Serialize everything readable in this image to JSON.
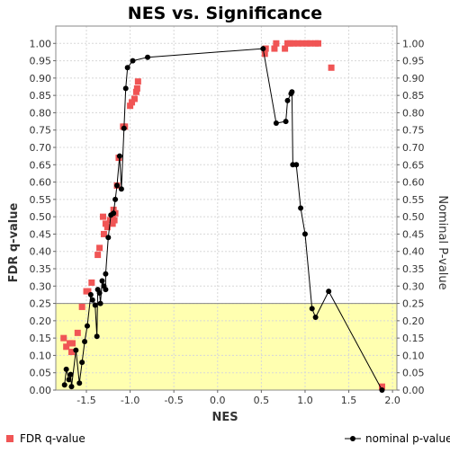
{
  "chart_data": {
    "type": "scatter",
    "title": "NES vs. Significance",
    "xlabel": "NES",
    "ylabel_left": "FDR q-value",
    "ylabel_right": "Nominal P-value",
    "xlim": [
      -1.85,
      2.05
    ],
    "ylim": [
      0,
      1.05
    ],
    "x_ticks": [
      "-1.5",
      "-1.0",
      "-0.5",
      "0.0",
      "0.5",
      "1.0",
      "1.5",
      "2.0"
    ],
    "y_ticks": [
      "0.00",
      "0.05",
      "0.10",
      "0.15",
      "0.20",
      "0.25",
      "0.30",
      "0.35",
      "0.40",
      "0.45",
      "0.50",
      "0.55",
      "0.60",
      "0.65",
      "0.70",
      "0.75",
      "0.80",
      "0.85",
      "0.90",
      "0.95",
      "1.00"
    ],
    "grid": true,
    "highlight_band": {
      "y_from": 0,
      "y_to": 0.25,
      "color": "#ffffb0"
    },
    "colors": {
      "fdr": "#f05555",
      "nominal": "#000000",
      "grid": "#d8d8d8"
    },
    "legend": {
      "fdr_label": "FDR q-value",
      "nominal_label": "nominal p-value",
      "placement": "bottom"
    },
    "series": [
      {
        "name": "FDR q-value",
        "marker": "square",
        "points": [
          [
            -1.76,
            0.15
          ],
          [
            -1.73,
            0.125
          ],
          [
            -1.69,
            0.135
          ],
          [
            -1.66,
            0.135
          ],
          [
            -1.67,
            0.11
          ],
          [
            -1.6,
            0.165
          ],
          [
            -1.55,
            0.24
          ],
          [
            -1.5,
            0.285
          ],
          [
            -1.48,
            0.285
          ],
          [
            -1.44,
            0.31
          ],
          [
            -1.37,
            0.39
          ],
          [
            -1.35,
            0.41
          ],
          [
            -1.31,
            0.5
          ],
          [
            -1.3,
            0.45
          ],
          [
            -1.28,
            0.48
          ],
          [
            -1.26,
            0.47
          ],
          [
            -1.23,
            0.49
          ],
          [
            -1.2,
            0.5
          ],
          [
            -1.2,
            0.48
          ],
          [
            -1.18,
            0.49
          ],
          [
            -1.17,
            0.51
          ],
          [
            -1.19,
            0.52
          ],
          [
            -1.15,
            0.59
          ],
          [
            -1.13,
            0.67
          ],
          [
            -1.08,
            0.76
          ],
          [
            -1.06,
            0.76
          ],
          [
            -1.0,
            0.82
          ],
          [
            -0.98,
            0.83
          ],
          [
            -0.95,
            0.84
          ],
          [
            -0.93,
            0.86
          ],
          [
            -0.92,
            0.87
          ],
          [
            -0.91,
            0.89
          ],
          [
            0.54,
            0.97
          ],
          [
            0.55,
            0.985
          ],
          [
            0.65,
            0.985
          ],
          [
            0.67,
            1.0
          ],
          [
            0.77,
            0.985
          ],
          [
            0.8,
            1.0
          ],
          [
            0.83,
            1.0
          ],
          [
            0.87,
            1.0
          ],
          [
            0.92,
            1.0
          ],
          [
            0.97,
            1.0
          ],
          [
            1.02,
            1.0
          ],
          [
            1.06,
            1.0
          ],
          [
            1.12,
            1.0
          ],
          [
            1.15,
            1.0
          ],
          [
            1.3,
            0.93
          ],
          [
            1.88,
            0.01
          ]
        ]
      },
      {
        "name": "nominal p-value",
        "marker": "circle",
        "points": [
          [
            -1.75,
            0.015
          ],
          [
            -1.73,
            0.06
          ],
          [
            -1.7,
            0.03
          ],
          [
            -1.68,
            0.045
          ],
          [
            -1.67,
            0.01
          ],
          [
            -1.62,
            0.115
          ],
          [
            -1.58,
            0.02
          ],
          [
            -1.55,
            0.08
          ],
          [
            -1.52,
            0.14
          ],
          [
            -1.49,
            0.185
          ],
          [
            -1.45,
            0.275
          ],
          [
            -1.43,
            0.26
          ],
          [
            -1.4,
            0.245
          ],
          [
            -1.38,
            0.155
          ],
          [
            -1.37,
            0.29
          ],
          [
            -1.35,
            0.28
          ],
          [
            -1.34,
            0.25
          ],
          [
            -1.32,
            0.315
          ],
          [
            -1.3,
            0.3
          ],
          [
            -1.28,
            0.29
          ],
          [
            -1.28,
            0.335
          ],
          [
            -1.25,
            0.44
          ],
          [
            -1.22,
            0.505
          ],
          [
            -1.19,
            0.51
          ],
          [
            -1.17,
            0.55
          ],
          [
            -1.15,
            0.59
          ],
          [
            -1.12,
            0.675
          ],
          [
            -1.1,
            0.58
          ],
          [
            -1.07,
            0.755
          ],
          [
            -1.05,
            0.87
          ],
          [
            -1.03,
            0.93
          ],
          [
            -0.97,
            0.95
          ],
          [
            -0.8,
            0.96
          ],
          [
            0.52,
            0.985
          ],
          [
            0.67,
            0.77
          ],
          [
            0.78,
            0.775
          ],
          [
            0.8,
            0.835
          ],
          [
            0.84,
            0.855
          ],
          [
            0.85,
            0.86
          ],
          [
            0.86,
            0.65
          ],
          [
            0.9,
            0.65
          ],
          [
            0.95,
            0.525
          ],
          [
            1.0,
            0.45
          ],
          [
            1.08,
            0.235
          ],
          [
            1.12,
            0.21
          ],
          [
            1.27,
            0.285
          ],
          [
            1.88,
            0.0
          ]
        ]
      }
    ]
  }
}
